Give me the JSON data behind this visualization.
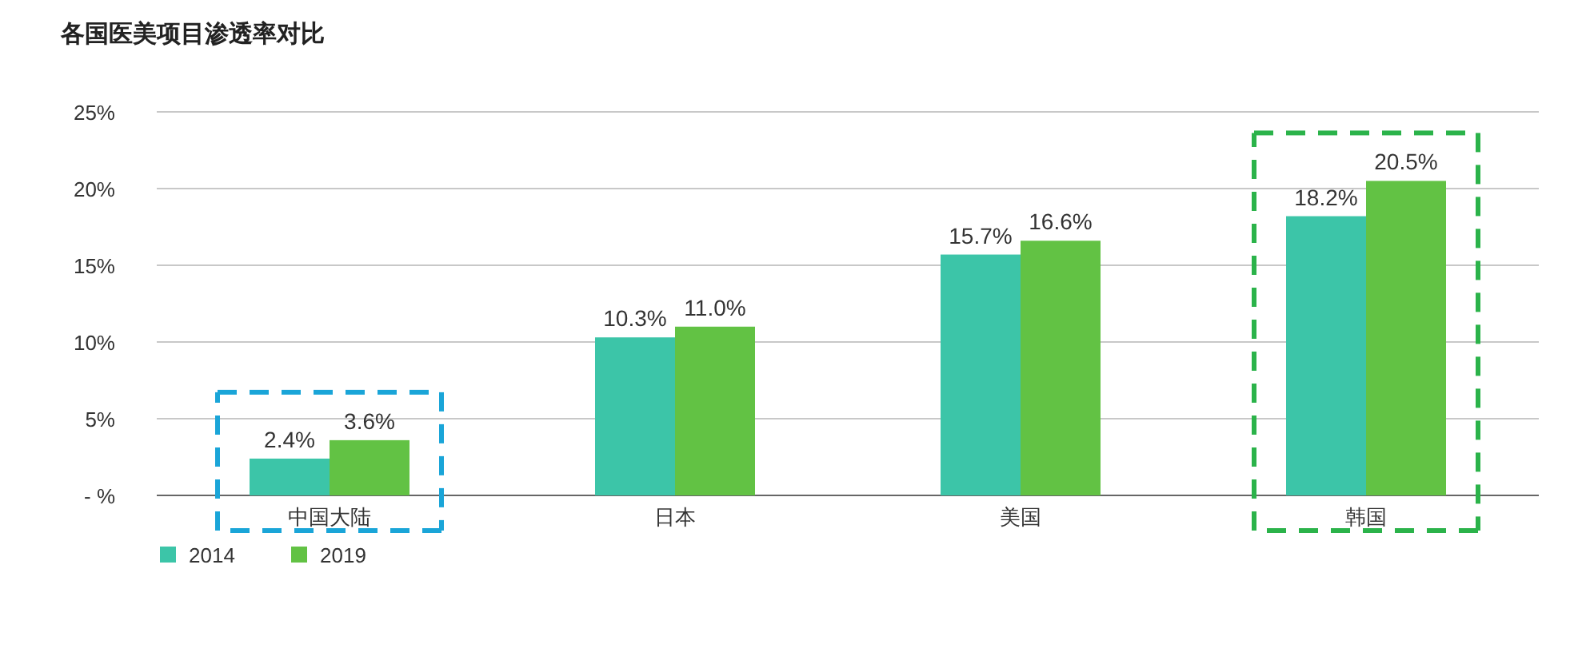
{
  "chart_data": {
    "type": "bar",
    "title": "各国医美项目渗透率对比",
    "categories": [
      "中国大陆",
      "日本",
      "美国",
      "韩国"
    ],
    "series": [
      {
        "name": "2014",
        "color": "#3cc5a8",
        "values": [
          2.4,
          10.3,
          15.7,
          18.2
        ],
        "value_labels": [
          "2.4%",
          "10.3%",
          "15.7%",
          "18.2%"
        ]
      },
      {
        "name": "2019",
        "color": "#62c244",
        "values": [
          3.6,
          11.0,
          16.6,
          20.5
        ],
        "value_labels": [
          "3.6%",
          "11.0%",
          "16.6%",
          "20.5%"
        ]
      }
    ],
    "ylim": [
      0,
      25
    ],
    "yticks": [
      {
        "value": 0,
        "label": "- %"
      },
      {
        "value": 5,
        "label": "5%"
      },
      {
        "value": 10,
        "label": "10%"
      },
      {
        "value": 15,
        "label": "15%"
      },
      {
        "value": 20,
        "label": "20%"
      },
      {
        "value": 25,
        "label": "25%"
      }
    ],
    "grid": "y",
    "legend": "bottom left"
  }
}
